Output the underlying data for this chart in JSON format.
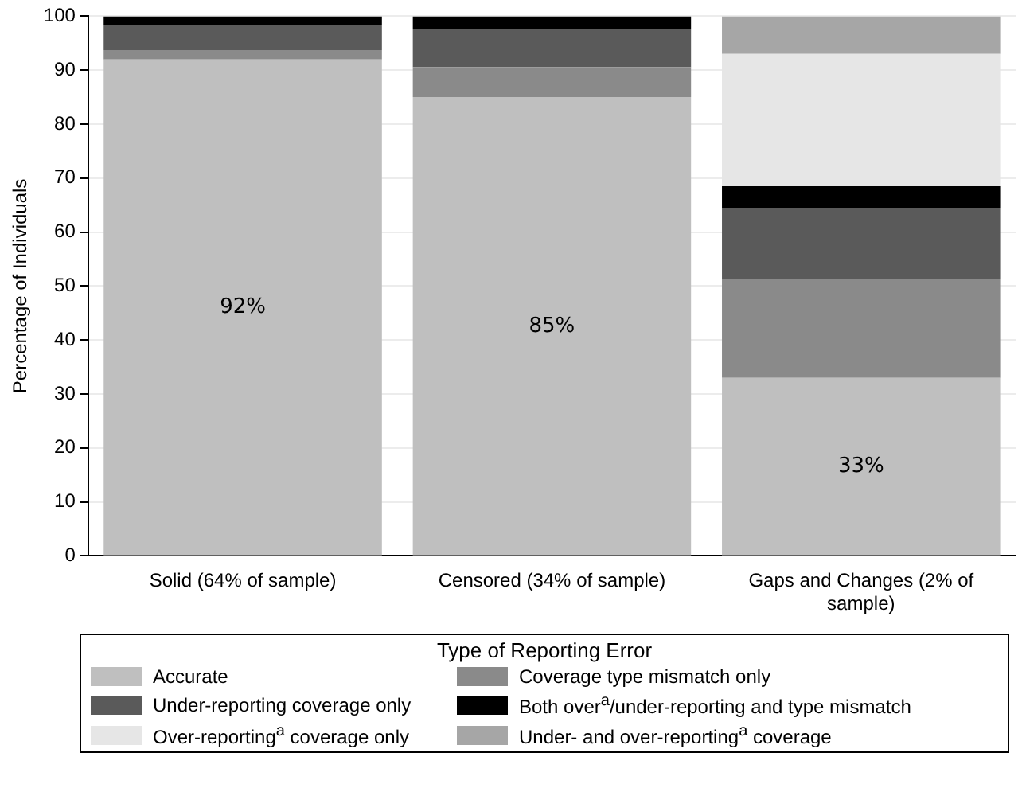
{
  "chart_data": {
    "type": "bar",
    "stacked": true,
    "ylabel": "Percentage of Individuals",
    "legend_title": "Type of Reporting Error",
    "legend": "bottom",
    "grid": "y",
    "categories": [
      "Solid (64% of sample)",
      "Censored (34% of sample)",
      "Gaps and Changes (2% of sample)"
    ],
    "ylim": [
      0,
      100
    ],
    "yticks": [
      0,
      10,
      20,
      30,
      40,
      50,
      60,
      70,
      80,
      90,
      100
    ],
    "series": [
      {
        "name": "Accurate",
        "color": "#bfbfbf",
        "values": [
          92,
          85,
          33
        ],
        "value_labels": [
          "92%",
          "85%",
          "33%"
        ]
      },
      {
        "name": "Coverage type mismatch only",
        "color": "#8a8a8a",
        "values": [
          1.7,
          5.6,
          18.3
        ]
      },
      {
        "name": "Under-reporting coverage only",
        "color": "#5a5a5a",
        "values": [
          4.7,
          7.1,
          13.2
        ]
      },
      {
        "name": "Both over$^{a}$/under-reporting and type mismatch",
        "color": "#000000",
        "values": [
          1.6,
          2.3,
          4
        ]
      },
      {
        "name": "Over-reporting$^{a}$ coverage only",
        "color": "#e6e6e6",
        "values": [
          0,
          0,
          24.5
        ]
      },
      {
        "name": "Under- and over-reporting$^{a}$ coverage",
        "color": "#a6a6a6",
        "values": [
          0,
          0,
          7
        ]
      }
    ]
  }
}
